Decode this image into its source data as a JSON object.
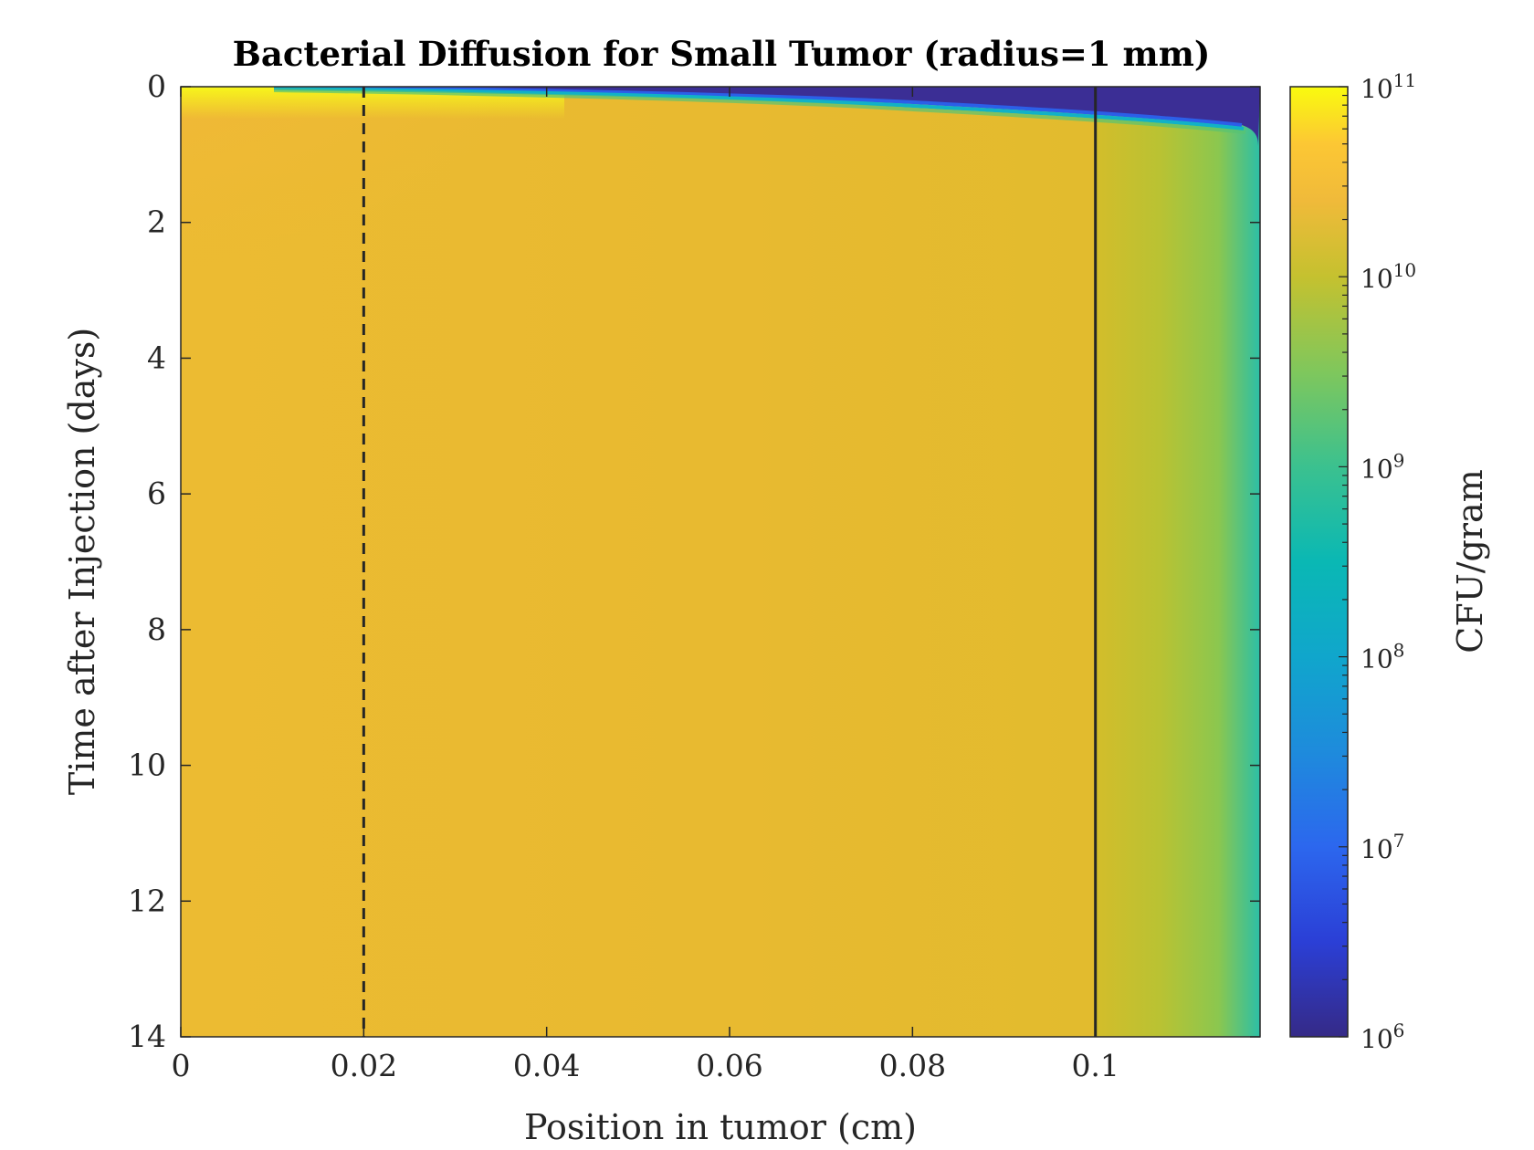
{
  "chart_data": {
    "type": "heatmap",
    "title": "Bacterial Diffusion for Small Tumor (radius=1 mm)",
    "xlabel": "Position in tumor (cm)",
    "ylabel": "Time after Injection (days)",
    "xlim": [
      0,
      0.118
    ],
    "ylim": [
      0,
      14
    ],
    "y_reversed": true,
    "xticks": [
      "0",
      "0.02",
      "0.04",
      "0.06",
      "0.08",
      "0.1"
    ],
    "xtick_values": [
      0,
      0.02,
      0.04,
      0.06,
      0.08,
      0.1
    ],
    "yticks": [
      "0",
      "2",
      "4",
      "6",
      "8",
      "10",
      "12",
      "14"
    ],
    "ytick_values": [
      0,
      2,
      4,
      6,
      8,
      10,
      12,
      14
    ],
    "colorbar": {
      "label": "CFU/gram",
      "scale": "log",
      "range": [
        1000000,
        100000000000
      ],
      "ticks": [
        {
          "base": "10",
          "exp": "6",
          "value": 1000000
        },
        {
          "base": "10",
          "exp": "7",
          "value": 10000000
        },
        {
          "base": "10",
          "exp": "8",
          "value": 100000000
        },
        {
          "base": "10",
          "exp": "9",
          "value": 1000000000
        },
        {
          "base": "10",
          "exp": "10",
          "value": 10000000000
        },
        {
          "base": "10",
          "exp": "11",
          "value": 100000000000
        }
      ],
      "colormap": "parula"
    },
    "reference_lines": [
      {
        "x": 0.02,
        "style": "dashed"
      },
      {
        "x": 0.1,
        "style": "solid"
      }
    ],
    "field_description_log10": {
      "core_plateau_log10": 10.05,
      "rim_plateau_log10": 9.7,
      "edge_at_x_0.118_log10": 8.7,
      "initial_peak_near_origin_log10": 11.0,
      "front_arrival_day_at_x_0.118": 0.75
    }
  }
}
